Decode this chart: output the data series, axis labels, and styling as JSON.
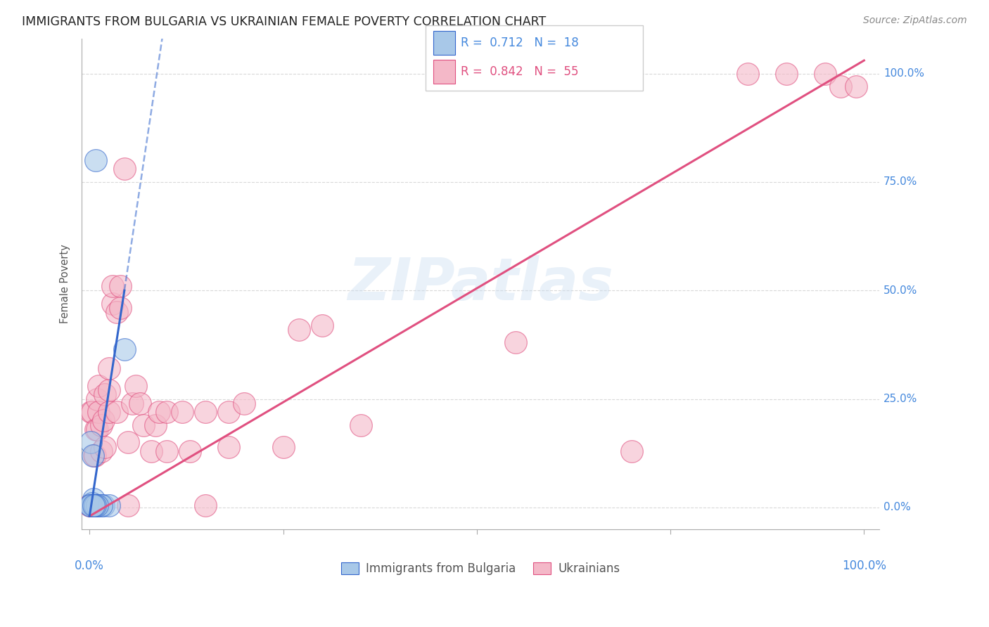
{
  "title": "IMMIGRANTS FROM BULGARIA VS UKRAINIAN FEMALE POVERTY CORRELATION CHART",
  "source": "Source: ZipAtlas.com",
  "ylabel": "Female Poverty",
  "legend_blue_r": "0.712",
  "legend_blue_n": "18",
  "legend_pink_r": "0.842",
  "legend_pink_n": "55",
  "watermark": "ZIPatlas",
  "bg_color": "#ffffff",
  "blue_color": "#a8c8e8",
  "pink_color": "#f4b8c8",
  "blue_line_color": "#3366cc",
  "pink_line_color": "#e05080",
  "grid_color": "#d0d0d0",
  "axis_label_color": "#4488dd",
  "title_color": "#222222",
  "source_color": "#888888",
  "blue_points": [
    [
      0.8,
      80.0
    ],
    [
      4.5,
      36.5
    ],
    [
      1.2,
      0.5
    ],
    [
      0.5,
      2.0
    ],
    [
      0.3,
      1.0
    ],
    [
      0.2,
      15.0
    ],
    [
      1.8,
      0.5
    ],
    [
      0.8,
      0.5
    ],
    [
      0.6,
      0.5
    ],
    [
      0.4,
      12.0
    ],
    [
      0.3,
      0.5
    ],
    [
      0.2,
      0.5
    ],
    [
      0.1,
      0.5
    ],
    [
      2.5,
      0.5
    ],
    [
      1.5,
      0.5
    ],
    [
      1.0,
      0.5
    ],
    [
      0.7,
      0.5
    ],
    [
      0.5,
      0.5
    ]
  ],
  "pink_points": [
    [
      0.0,
      0.5
    ],
    [
      0.2,
      22.0
    ],
    [
      0.3,
      22.0
    ],
    [
      0.5,
      0.5
    ],
    [
      0.6,
      12.0
    ],
    [
      0.7,
      12.0
    ],
    [
      0.8,
      18.0
    ],
    [
      1.0,
      18.0
    ],
    [
      1.0,
      25.0
    ],
    [
      1.2,
      22.0
    ],
    [
      1.2,
      28.0
    ],
    [
      1.5,
      13.0
    ],
    [
      1.5,
      19.0
    ],
    [
      1.8,
      20.0
    ],
    [
      2.0,
      14.0
    ],
    [
      2.0,
      26.0
    ],
    [
      2.5,
      27.0
    ],
    [
      2.5,
      32.0
    ],
    [
      2.5,
      22.0
    ],
    [
      3.0,
      47.0
    ],
    [
      3.0,
      51.0
    ],
    [
      3.5,
      45.0
    ],
    [
      3.5,
      22.0
    ],
    [
      4.0,
      51.0
    ],
    [
      4.0,
      46.0
    ],
    [
      4.5,
      78.0
    ],
    [
      5.0,
      15.0
    ],
    [
      5.0,
      0.5
    ],
    [
      5.5,
      24.0
    ],
    [
      6.0,
      28.0
    ],
    [
      6.5,
      24.0
    ],
    [
      7.0,
      19.0
    ],
    [
      8.0,
      13.0
    ],
    [
      8.5,
      19.0
    ],
    [
      9.0,
      22.0
    ],
    [
      10.0,
      22.0
    ],
    [
      10.0,
      13.0
    ],
    [
      12.0,
      22.0
    ],
    [
      13.0,
      13.0
    ],
    [
      15.0,
      0.5
    ],
    [
      15.0,
      22.0
    ],
    [
      18.0,
      22.0
    ],
    [
      18.0,
      14.0
    ],
    [
      20.0,
      24.0
    ],
    [
      25.0,
      14.0
    ],
    [
      27.0,
      41.0
    ],
    [
      30.0,
      42.0
    ],
    [
      35.0,
      19.0
    ],
    [
      55.0,
      38.0
    ],
    [
      70.0,
      13.0
    ],
    [
      85.0,
      100.0
    ],
    [
      90.0,
      100.0
    ],
    [
      95.0,
      100.0
    ],
    [
      97.0,
      97.0
    ],
    [
      99.0,
      97.0
    ]
  ],
  "blue_line_solid": [
    [
      0.0,
      -2.0
    ],
    [
      4.5,
      50.0
    ]
  ],
  "blue_line_dashed": [
    [
      4.5,
      50.0
    ],
    [
      15.0,
      175.0
    ]
  ],
  "pink_line": [
    [
      0.0,
      -2.0
    ],
    [
      100.0,
      103.0
    ]
  ],
  "xlim": [
    -1.0,
    102.0
  ],
  "ylim": [
    -5.0,
    108.0
  ],
  "xticks": [
    0,
    25,
    50,
    75,
    100
  ],
  "yticks": [
    0,
    25,
    50,
    75,
    100
  ],
  "xticklabels": [
    "0.0%",
    "",
    "",
    "",
    "100.0%"
  ],
  "yticklabels_right": [
    "0.0%",
    "25.0%",
    "50.0%",
    "75.0%",
    "100.0%"
  ]
}
